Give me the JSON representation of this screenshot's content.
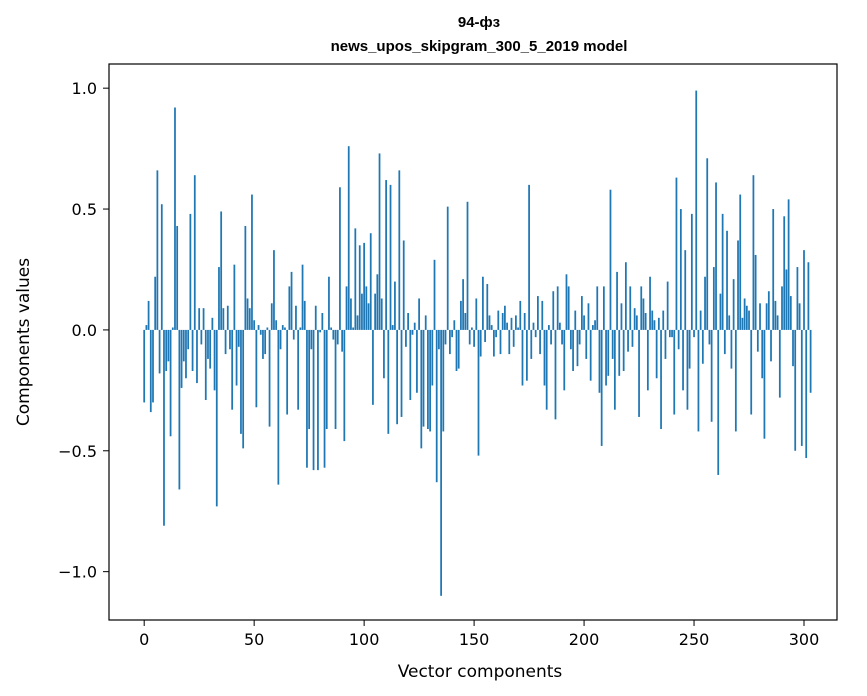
{
  "chart_data": {
    "type": "bar",
    "title": "94-фз",
    "subtitle": "news_upos_skipgram_300_5_2019 model",
    "xlabel": "Vector components",
    "ylabel": "Components values",
    "xlim": [
      -16,
      315
    ],
    "ylim": [
      -1.2,
      1.1
    ],
    "x_ticks": [
      0,
      50,
      100,
      150,
      200,
      250,
      300
    ],
    "x_tick_labels": [
      "0",
      "50",
      "100",
      "150",
      "200",
      "250",
      "300"
    ],
    "y_ticks": [
      -1.0,
      -0.5,
      0.0,
      0.5,
      1.0
    ],
    "y_tick_labels": [
      "−1.0",
      "−0.5",
      "0.0",
      "0.5",
      "1.0"
    ],
    "grid": false,
    "bar_color": "#1f77b4",
    "values": [
      -0.3,
      0.02,
      0.12,
      -0.34,
      -0.3,
      0.22,
      0.66,
      -0.18,
      0.52,
      -0.81,
      -0.17,
      -0.13,
      -0.44,
      0.01,
      0.92,
      0.43,
      -0.66,
      -0.24,
      -0.13,
      -0.2,
      -0.08,
      0.48,
      -0.17,
      0.64,
      -0.22,
      0.09,
      -0.06,
      0.09,
      -0.29,
      -0.12,
      -0.16,
      0.05,
      -0.25,
      -0.73,
      0.26,
      0.49,
      0.09,
      -0.1,
      0.1,
      -0.08,
      -0.33,
      0.27,
      -0.23,
      -0.07,
      -0.43,
      -0.49,
      0.43,
      0.13,
      0.09,
      0.56,
      0.04,
      -0.32,
      0.02,
      -0.02,
      -0.12,
      -0.1,
      0.01,
      -0.4,
      0.11,
      0.33,
      0.04,
      -0.64,
      -0.08,
      0.02,
      0.01,
      -0.35,
      0.18,
      0.24,
      -0.04,
      0.1,
      -0.33,
      0.01,
      0.27,
      0.12,
      -0.57,
      -0.41,
      -0.08,
      -0.58,
      0.1,
      -0.58,
      -0.01,
      0.07,
      -0.57,
      -0.41,
      0.22,
      0.01,
      -0.04,
      -0.41,
      -0.06,
      0.59,
      -0.09,
      -0.46,
      0.18,
      0.76,
      0.13,
      0.01,
      0.42,
      0.06,
      0.35,
      0.15,
      0.36,
      0.18,
      0.11,
      0.4,
      -0.31,
      0.15,
      0.23,
      0.73,
      0.13,
      -0.2,
      0.62,
      -0.43,
      0.6,
      0.02,
      0.2,
      -0.39,
      0.66,
      -0.36,
      0.37,
      -0.07,
      0.07,
      -0.29,
      -0.02,
      0.03,
      -0.26,
      0.13,
      -0.49,
      -0.4,
      0.06,
      -0.41,
      -0.42,
      -0.23,
      0.29,
      -0.63,
      -0.08,
      -1.1,
      -0.42,
      -0.06,
      0.51,
      -0.1,
      -0.03,
      0.04,
      -0.17,
      -0.16,
      0.12,
      0.21,
      0.07,
      0.53,
      -0.06,
      0.01,
      -0.07,
      0.13,
      -0.52,
      -0.11,
      0.22,
      -0.05,
      0.19,
      0.06,
      0.02,
      -0.11,
      -0.03,
      0.08,
      -0.1,
      0.07,
      0.1,
      0.03,
      -0.1,
      0.05,
      -0.07,
      0.06,
      0.01,
      0.12,
      -0.23,
      0.07,
      -0.21,
      0.6,
      -0.12,
      0.03,
      -0.03,
      0.14,
      -0.1,
      0.12,
      -0.23,
      -0.33,
      0.02,
      -0.06,
      0.16,
      -0.37,
      0.18,
      0.03,
      -0.06,
      -0.25,
      0.23,
      0.18,
      -0.08,
      -0.17,
      0.08,
      -0.15,
      -0.06,
      0.14,
      0.06,
      -0.12,
      0.11,
      -0.21,
      0.02,
      0.04,
      0.18,
      -0.26,
      -0.48,
      0.18,
      -0.23,
      -0.19,
      0.58,
      -0.12,
      -0.33,
      0.24,
      -0.19,
      0.11,
      -0.17,
      0.28,
      -0.09,
      0.18,
      -0.07,
      0.09,
      0.06,
      -0.36,
      0.18,
      0.13,
      0.07,
      -0.25,
      0.22,
      0.08,
      0.04,
      -0.2,
      0.05,
      -0.41,
      0.08,
      -0.12,
      0.2,
      -0.03,
      -0.03,
      -0.35,
      0.63,
      -0.08,
      0.5,
      -0.25,
      0.33,
      -0.33,
      -0.16,
      0.48,
      -0.03,
      0.99,
      -0.42,
      0.08,
      -0.14,
      0.22,
      0.71,
      -0.06,
      -0.38,
      0.26,
      0.61,
      -0.6,
      0.15,
      0.48,
      -0.1,
      0.41,
      0.06,
      -0.16,
      0.21,
      -0.42,
      0.37,
      0.56,
      0.05,
      0.13,
      0.1,
      0.08,
      -0.35,
      0.64,
      0.31,
      -0.09,
      0.11,
      -0.2,
      -0.45,
      0.11,
      0.16,
      -0.13,
      0.5,
      0.12,
      0.06,
      -0.28,
      0.18,
      0.47,
      0.25,
      0.54,
      0.14,
      -0.15,
      -0.5,
      0.26,
      0.11,
      -0.48,
      0.33,
      -0.53,
      0.28,
      -0.26
    ]
  }
}
